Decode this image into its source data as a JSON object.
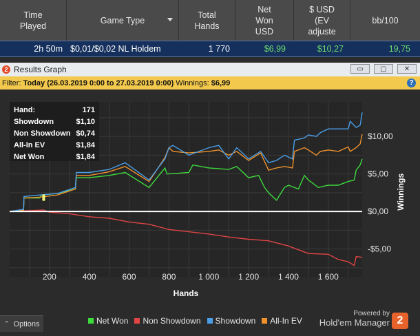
{
  "table": {
    "headers": [
      {
        "label": "Time\nPlayed"
      },
      {
        "label": "Game Type"
      },
      {
        "label": "Total\nHands"
      },
      {
        "label": "Net\nWon\nUSD"
      },
      {
        "label": "$ USD\n(EV\nadjuste"
      },
      {
        "label": "bb/100"
      }
    ],
    "row": {
      "time_played": "2h 50m",
      "game_type": "$0,01/$0,02 NL Holdem",
      "total_hands": "1 770",
      "net_won": "$6,99",
      "ev_adjusted": "$10,27",
      "bb100": "19,75"
    }
  },
  "window": {
    "title": "Results Graph",
    "badge": "2",
    "buttons": {
      "minimize": "▭",
      "restore": "▢",
      "close": "✕"
    }
  },
  "filter": {
    "prefix": "Filter:",
    "range": "Today (26.03.2019 0:00 to 27.03.2019 0:00)",
    "winnings_label": "Winnings:",
    "winnings_value": "$6,99",
    "help": "?"
  },
  "tooltip": {
    "rows": [
      {
        "label": "Hand:",
        "value": "171"
      },
      {
        "label": "Showdown",
        "value": "$1,10"
      },
      {
        "label": "Non Showdown",
        "value": "$0,74"
      },
      {
        "label": "All-In EV",
        "value": "$1,84"
      },
      {
        "label": "Net Won",
        "value": "$1,84"
      }
    ]
  },
  "chart_data": {
    "type": "line",
    "xlabel": "Hands",
    "ylabel": "Winnings",
    "xlim": [
      0,
      1770
    ],
    "ylim": [
      -8.7,
      14.6
    ],
    "x_ticks": [
      {
        "value": 200,
        "label": "200"
      },
      {
        "value": 400,
        "label": "400"
      },
      {
        "value": 600,
        "label": "600"
      },
      {
        "value": 800,
        "label": "800"
      },
      {
        "value": 1000,
        "label": "1 000"
      },
      {
        "value": 1200,
        "label": "1 200"
      },
      {
        "value": 1400,
        "label": "1 400"
      },
      {
        "value": 1600,
        "label": "1 600"
      }
    ],
    "y_ticks": [
      {
        "value": 10,
        "label": "$10,00"
      },
      {
        "value": 5,
        "label": "$5,00"
      },
      {
        "value": 0,
        "label": "$0,00"
      },
      {
        "value": -5,
        "label": "-$5,00"
      }
    ],
    "grid": true,
    "colors": {
      "net_won": "#3ddc3d",
      "non_showdown": "#e24444",
      "showdown": "#4a9ee8",
      "allin_ev": "#f0922c",
      "zero_line": "#ffffff"
    },
    "series": [
      {
        "name": "Net Won",
        "key": "net_won",
        "x": [
          0,
          70,
          72,
          150,
          160,
          240,
          330,
          335,
          400,
          500,
          580,
          700,
          780,
          790,
          900,
          920,
          1000,
          1100,
          1140,
          1200,
          1250,
          1280,
          1300,
          1340,
          1380,
          1400,
          1450,
          1480,
          1500,
          1550,
          1600,
          1650,
          1700,
          1730,
          1740,
          1760,
          1770
        ],
        "y": [
          0,
          0.2,
          1.8,
          1.8,
          2.2,
          2.4,
          3.0,
          4.5,
          4.5,
          4.8,
          5.2,
          3.2,
          5.8,
          5.0,
          5.2,
          6.2,
          5.8,
          5.6,
          6.0,
          4.5,
          4.8,
          3.2,
          2.5,
          1.5,
          3.2,
          3.5,
          3.0,
          4.8,
          4.2,
          3.2,
          3.5,
          3.5,
          4.0,
          4.2,
          5.5,
          6.2,
          7.0
        ]
      },
      {
        "name": "Non Showdown",
        "key": "non_showdown",
        "x": [
          0,
          170,
          200,
          300,
          400,
          500,
          600,
          700,
          800,
          900,
          1000,
          1100,
          1200,
          1300,
          1400,
          1500,
          1600,
          1650,
          1700,
          1730,
          1740,
          1770
        ],
        "y": [
          0,
          0.2,
          -0.1,
          -0.3,
          -0.7,
          -0.9,
          -1.4,
          -1.7,
          -2.4,
          -2.7,
          -3.0,
          -3.4,
          -3.7,
          -3.9,
          -4.6,
          -5.6,
          -5.7,
          -6.4,
          -6.7,
          -7.2,
          -6.0,
          -6.1
        ]
      },
      {
        "name": "Showdown",
        "key": "showdown",
        "x": [
          0,
          70,
          72,
          150,
          240,
          330,
          335,
          400,
          500,
          580,
          700,
          780,
          800,
          820,
          900,
          1000,
          1050,
          1100,
          1140,
          1200,
          1260,
          1300,
          1340,
          1380,
          1420,
          1430,
          1480,
          1500,
          1540,
          1560,
          1600,
          1700,
          1710,
          1740,
          1760,
          1770
        ],
        "y": [
          0,
          0.3,
          2.0,
          2.2,
          2.4,
          3.2,
          5.2,
          5.2,
          5.6,
          6.5,
          4.2,
          7.0,
          8.5,
          8.8,
          7.5,
          8.5,
          8.8,
          7.0,
          8.5,
          7.0,
          8.0,
          6.5,
          6.8,
          7.5,
          7.0,
          9.5,
          9.8,
          10.2,
          10.0,
          10.5,
          11.0,
          11.0,
          12.0,
          11.2,
          11.5,
          13.2
        ]
      },
      {
        "name": "All-In EV",
        "key": "allin_ev",
        "x": [
          0,
          70,
          72,
          150,
          240,
          330,
          335,
          400,
          500,
          580,
          700,
          780,
          800,
          820,
          900,
          1000,
          1050,
          1100,
          1140,
          1200,
          1260,
          1300,
          1340,
          1380,
          1420,
          1430,
          1480,
          1500,
          1540,
          1560,
          1600,
          1650,
          1700,
          1710,
          1740,
          1760,
          1770
        ],
        "y": [
          0,
          0.2,
          1.8,
          1.9,
          2.2,
          3.0,
          4.8,
          4.8,
          5.3,
          6.0,
          4.0,
          7.2,
          8.5,
          8.0,
          7.8,
          8.0,
          8.2,
          7.5,
          8.0,
          6.8,
          7.8,
          5.5,
          5.8,
          6.0,
          5.8,
          8.0,
          8.5,
          8.2,
          7.5,
          8.0,
          8.2,
          8.0,
          8.6,
          8.0,
          8.5,
          9.0,
          10.3
        ]
      }
    ]
  },
  "legend": [
    {
      "label": "Net Won",
      "key": "net_won"
    },
    {
      "label": "Non Showdown",
      "key": "non_showdown"
    },
    {
      "label": "Showdown",
      "key": "showdown"
    },
    {
      "label": "All-In EV",
      "key": "allin_ev"
    }
  ],
  "options": {
    "label": "Options",
    "chevron": "⌃"
  },
  "brand": {
    "powered_by": "Powered by",
    "name": "Hold'em Manager",
    "logo_number": "2"
  }
}
